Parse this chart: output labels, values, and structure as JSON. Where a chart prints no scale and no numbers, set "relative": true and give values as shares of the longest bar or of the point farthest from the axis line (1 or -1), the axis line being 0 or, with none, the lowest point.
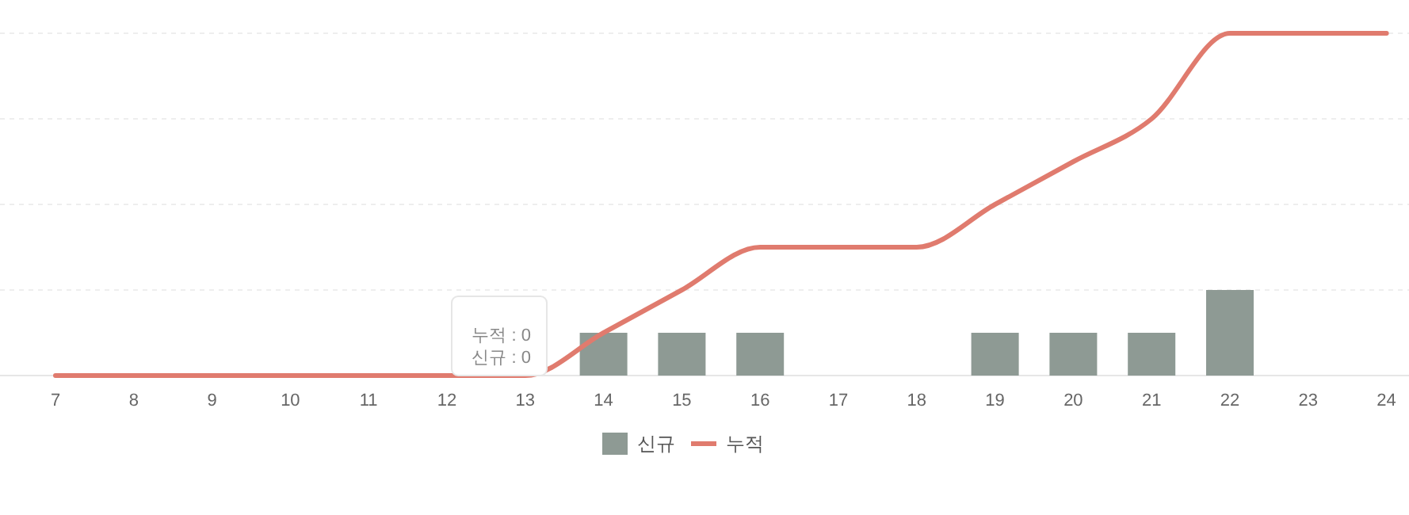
{
  "chart_data": {
    "type": "bar",
    "relative": true,
    "grid": "y",
    "legend": "bottom",
    "categories": [
      "7",
      "8",
      "9",
      "10",
      "11",
      "12",
      "13",
      "14",
      "15",
      "16",
      "17",
      "18",
      "19",
      "20",
      "21",
      "22",
      "23",
      "24"
    ],
    "series": [
      {
        "name": "신규",
        "color": "#8e9a94",
        "values": [
          0,
          0,
          0,
          0,
          0,
          0,
          0,
          0.125,
          0.125,
          0.125,
          0,
          0,
          0.125,
          0.125,
          0.125,
          0.25,
          0,
          0
        ]
      },
      {
        "name": "누적",
        "type": "line",
        "color": "#e07b6e",
        "marker": "none",
        "values": [
          0,
          0,
          0,
          0,
          0,
          0,
          0,
          0.125,
          0.25,
          0.375,
          0.375,
          0.375,
          0.5,
          0.625,
          0.75,
          1,
          1,
          1
        ]
      }
    ],
    "annotations": [
      "누적 : 0",
      "신규 : 0"
    ]
  }
}
